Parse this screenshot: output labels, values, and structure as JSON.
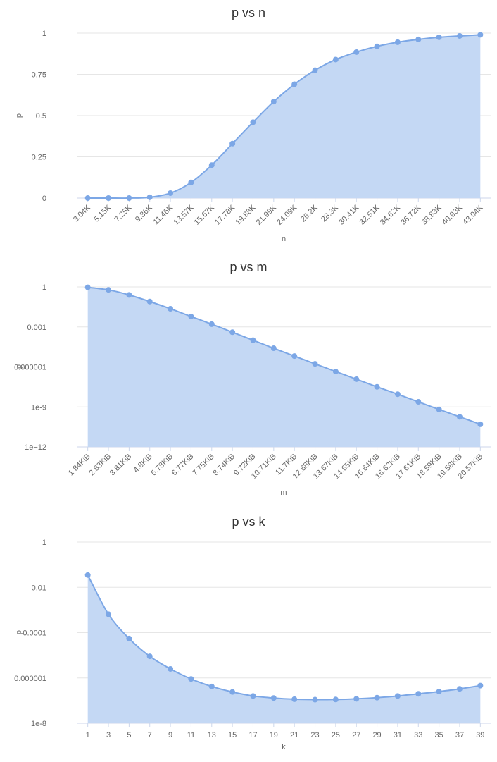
{
  "chart_data": [
    {
      "type": "area",
      "title": "p vs n",
      "xlabel": "n",
      "ylabel": "p",
      "yscale": "linear",
      "ylim": [
        0,
        1
      ],
      "yticks": [
        0,
        0.25,
        0.5,
        0.75,
        1
      ],
      "ytick_labels": [
        "0",
        "0.25",
        "0.5",
        "0.75",
        "1"
      ],
      "categories": [
        "3.04K",
        "5.15K",
        "7.25K",
        "9.36K",
        "11.46K",
        "13.57K",
        "15.67K",
        "17.78K",
        "19.88K",
        "21.99K",
        "24.09K",
        "26.2K",
        "28.3K",
        "30.41K",
        "32.51K",
        "34.62K",
        "36.72K",
        "38.83K",
        "40.93K",
        "43.04K"
      ],
      "series": [
        {
          "values": [
            0.0,
            0.0,
            0.0,
            0.005,
            0.03,
            0.095,
            0.2,
            0.33,
            0.46,
            0.585,
            0.69,
            0.775,
            0.84,
            0.885,
            0.92,
            0.945,
            0.962,
            0.975,
            0.983,
            0.99
          ]
        }
      ],
      "grid": true,
      "color": "#7CA7E6",
      "fill": "#C4D8F4"
    },
    {
      "type": "area",
      "title": "p vs m",
      "xlabel": "m",
      "ylabel": "p",
      "yscale": "log",
      "ylim": [
        1e-12,
        1
      ],
      "yticks": [
        1e-12,
        1e-09,
        1e-06,
        0.001,
        1
      ],
      "ytick_labels": [
        "1e−12",
        "1e-9",
        "0.000001",
        "0.001",
        "1"
      ],
      "categories": [
        "1.84KiB",
        "2.83KiB",
        "3.81KiB",
        "4.8KiB",
        "5.78KiB",
        "6.77KiB",
        "7.75KiB",
        "8.74KiB",
        "9.72KiB",
        "10.71KiB",
        "11.7KiB",
        "12.68KiB",
        "13.67KiB",
        "14.65KiB",
        "15.64KiB",
        "16.62KiB",
        "17.61KiB",
        "18.59KiB",
        "19.58KiB",
        "20.57KiB"
      ],
      "series": [
        {
          "values": [
            0.92,
            0.6,
            0.25,
            0.08,
            0.023,
            0.006,
            0.0016,
            0.0004,
            0.0001,
            2.5e-05,
            6.5e-06,
            1.7e-06,
            4.5e-07,
            1.2e-07,
            3.2e-08,
            9e-09,
            2.4e-09,
            6.5e-10,
            1.8e-10,
            5e-11
          ]
        }
      ],
      "grid": true,
      "color": "#7CA7E6",
      "fill": "#C4D8F4"
    },
    {
      "type": "area",
      "title": "p vs k",
      "xlabel": "k",
      "ylabel": "p",
      "yscale": "log",
      "ylim": [
        1e-08,
        1
      ],
      "yticks": [
        1e-08,
        1e-06,
        0.0001,
        0.01,
        1
      ],
      "ytick_labels": [
        "1e-8",
        "0.000001",
        "0.0001",
        "0.01",
        "1"
      ],
      "categories": [
        "1",
        "3",
        "5",
        "7",
        "9",
        "11",
        "13",
        "15",
        "17",
        "19",
        "21",
        "23",
        "25",
        "27",
        "29",
        "31",
        "33",
        "35",
        "37",
        "39"
      ],
      "series": [
        {
          "values": [
            0.035,
            0.00065,
            5.5e-05,
            9e-06,
            2.5e-06,
            9e-07,
            4.2e-07,
            2.4e-07,
            1.6e-07,
            1.3e-07,
            1.15e-07,
            1.1e-07,
            1.12e-07,
            1.2e-07,
            1.35e-07,
            1.6e-07,
            2e-07,
            2.5e-07,
            3.3e-07,
            4.6e-07
          ]
        }
      ],
      "grid": true,
      "color": "#7CA7E6",
      "fill": "#C4D8F4"
    }
  ]
}
